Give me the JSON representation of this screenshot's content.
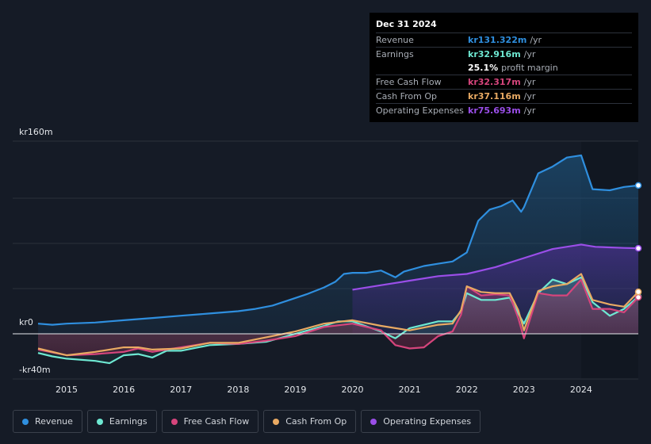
{
  "chart_data": {
    "type": "area",
    "currency_prefix": "kr",
    "y_axis": {
      "labels": [
        "kr160m",
        "kr0",
        "-kr40m"
      ],
      "ylim": [
        -40,
        160
      ]
    },
    "xlim": [
      2014.5,
      2025.0
    ],
    "x_ticks": [
      {
        "label": "2015",
        "value": 2015.0
      },
      {
        "label": "2016",
        "value": 2016.0
      },
      {
        "label": "2017",
        "value": 2017.0
      },
      {
        "label": "2018",
        "value": 2018.0
      },
      {
        "label": "2019",
        "value": 2019.0
      },
      {
        "label": "2020",
        "value": 2020.0
      },
      {
        "label": "2021",
        "value": 2021.0
      },
      {
        "label": "2022",
        "value": 2022.0
      },
      {
        "label": "2023",
        "value": 2023.0
      },
      {
        "label": "2024",
        "value": 2024.0
      }
    ],
    "shaded_from": 2024.0,
    "series": [
      {
        "name": "Revenue",
        "key": "revenue",
        "color": "#2f8fdf",
        "fill": true,
        "points": [
          [
            2014.5,
            9
          ],
          [
            2014.75,
            8
          ],
          [
            2015.0,
            9
          ],
          [
            2015.5,
            10
          ],
          [
            2015.75,
            11
          ],
          [
            2016.0,
            12
          ],
          [
            2016.5,
            14
          ],
          [
            2017.0,
            16
          ],
          [
            2017.5,
            18
          ],
          [
            2018.0,
            20
          ],
          [
            2018.3,
            22
          ],
          [
            2018.6,
            25
          ],
          [
            2018.9,
            30
          ],
          [
            2019.2,
            35
          ],
          [
            2019.5,
            41
          ],
          [
            2019.7,
            46
          ],
          [
            2019.85,
            53
          ],
          [
            2020.0,
            54
          ],
          [
            2020.25,
            54
          ],
          [
            2020.5,
            56
          ],
          [
            2020.75,
            50
          ],
          [
            2020.9,
            55
          ],
          [
            2021.25,
            60
          ],
          [
            2021.5,
            62
          ],
          [
            2021.75,
            64
          ],
          [
            2022.0,
            72
          ],
          [
            2022.2,
            100
          ],
          [
            2022.4,
            110
          ],
          [
            2022.6,
            113
          ],
          [
            2022.8,
            118
          ],
          [
            2022.95,
            108
          ],
          [
            2023.0,
            112
          ],
          [
            2023.25,
            142
          ],
          [
            2023.5,
            148
          ],
          [
            2023.75,
            156
          ],
          [
            2024.0,
            158
          ],
          [
            2024.2,
            128
          ],
          [
            2024.5,
            127
          ],
          [
            2024.75,
            130
          ],
          [
            2025.0,
            131.322
          ]
        ]
      },
      {
        "name": "Operating Expenses",
        "key": "opex",
        "color": "#9a4ee8",
        "fill": true,
        "points": [
          [
            2020.0,
            39
          ],
          [
            2020.5,
            43
          ],
          [
            2021.0,
            47
          ],
          [
            2021.5,
            51
          ],
          [
            2022.0,
            53
          ],
          [
            2022.5,
            59
          ],
          [
            2023.0,
            67
          ],
          [
            2023.5,
            75
          ],
          [
            2024.0,
            79
          ],
          [
            2024.25,
            77
          ],
          [
            2024.75,
            76
          ],
          [
            2025.0,
            75.693
          ]
        ]
      },
      {
        "name": "Earnings",
        "key": "earnings",
        "color": "#6ee8d2",
        "fill": true,
        "points": [
          [
            2014.5,
            -17
          ],
          [
            2014.75,
            -20
          ],
          [
            2015.0,
            -22
          ],
          [
            2015.5,
            -24
          ],
          [
            2015.75,
            -26
          ],
          [
            2016.0,
            -19
          ],
          [
            2016.25,
            -18
          ],
          [
            2016.5,
            -21
          ],
          [
            2016.75,
            -15
          ],
          [
            2017.0,
            -15
          ],
          [
            2017.5,
            -10
          ],
          [
            2018.0,
            -9
          ],
          [
            2018.5,
            -7
          ],
          [
            2019.0,
            0
          ],
          [
            2019.5,
            7
          ],
          [
            2019.75,
            11
          ],
          [
            2020.0,
            11
          ],
          [
            2020.5,
            2
          ],
          [
            2020.75,
            -4
          ],
          [
            2021.0,
            5
          ],
          [
            2021.5,
            11
          ],
          [
            2021.75,
            11
          ],
          [
            2021.9,
            20
          ],
          [
            2022.0,
            36
          ],
          [
            2022.25,
            30
          ],
          [
            2022.5,
            30
          ],
          [
            2022.75,
            32
          ],
          [
            2022.9,
            18
          ],
          [
            2023.0,
            9
          ],
          [
            2023.25,
            36
          ],
          [
            2023.5,
            48
          ],
          [
            2023.75,
            44
          ],
          [
            2024.0,
            50
          ],
          [
            2024.2,
            28
          ],
          [
            2024.5,
            16
          ],
          [
            2024.75,
            22
          ],
          [
            2025.0,
            32.916
          ]
        ]
      },
      {
        "name": "Free Cash Flow",
        "key": "fcf",
        "color": "#d6457c",
        "fill": true,
        "points": [
          [
            2014.5,
            -14
          ],
          [
            2015.0,
            -19
          ],
          [
            2015.5,
            -18
          ],
          [
            2016.0,
            -16
          ],
          [
            2016.25,
            -13
          ],
          [
            2016.5,
            -16
          ],
          [
            2017.0,
            -12
          ],
          [
            2017.5,
            -8
          ],
          [
            2018.0,
            -9
          ],
          [
            2018.5,
            -6
          ],
          [
            2019.0,
            -2
          ],
          [
            2019.5,
            6
          ],
          [
            2020.0,
            9
          ],
          [
            2020.5,
            3
          ],
          [
            2020.75,
            -10
          ],
          [
            2021.0,
            -13
          ],
          [
            2021.25,
            -12
          ],
          [
            2021.5,
            -2
          ],
          [
            2021.75,
            2
          ],
          [
            2021.9,
            17
          ],
          [
            2022.0,
            42
          ],
          [
            2022.25,
            34
          ],
          [
            2022.5,
            35
          ],
          [
            2022.75,
            34
          ],
          [
            2022.9,
            14
          ],
          [
            2023.0,
            -4
          ],
          [
            2023.25,
            36
          ],
          [
            2023.5,
            34
          ],
          [
            2023.75,
            34
          ],
          [
            2024.0,
            48
          ],
          [
            2024.2,
            22
          ],
          [
            2024.5,
            22
          ],
          [
            2024.75,
            19
          ],
          [
            2025.0,
            32.317
          ]
        ]
      },
      {
        "name": "Cash From Op",
        "key": "cfo",
        "color": "#e9aa63",
        "fill": false,
        "points": [
          [
            2014.5,
            -13
          ],
          [
            2015.0,
            -19
          ],
          [
            2015.5,
            -16
          ],
          [
            2016.0,
            -12
          ],
          [
            2016.25,
            -12
          ],
          [
            2016.5,
            -14
          ],
          [
            2017.0,
            -13
          ],
          [
            2017.5,
            -8
          ],
          [
            2018.0,
            -8
          ],
          [
            2018.5,
            -3
          ],
          [
            2019.0,
            2
          ],
          [
            2019.5,
            9
          ],
          [
            2020.0,
            12
          ],
          [
            2020.5,
            7
          ],
          [
            2021.0,
            3
          ],
          [
            2021.5,
            8
          ],
          [
            2021.75,
            9
          ],
          [
            2021.9,
            21
          ],
          [
            2022.0,
            42
          ],
          [
            2022.25,
            37
          ],
          [
            2022.5,
            36
          ],
          [
            2022.75,
            36
          ],
          [
            2022.9,
            21
          ],
          [
            2023.0,
            3
          ],
          [
            2023.25,
            38
          ],
          [
            2023.5,
            42
          ],
          [
            2023.75,
            44
          ],
          [
            2024.0,
            53
          ],
          [
            2024.2,
            30
          ],
          [
            2024.5,
            26
          ],
          [
            2024.75,
            24
          ],
          [
            2025.0,
            37.116
          ]
        ]
      }
    ]
  },
  "tooltip": {
    "date": "Dec 31 2024",
    "rows": [
      {
        "label": "Revenue",
        "value": "kr131.322m",
        "unit": "/yr",
        "color": "#2f8fdf"
      },
      {
        "label": "Earnings",
        "value": "kr32.916m",
        "unit": "/yr",
        "color": "#6ee8d2"
      },
      {
        "label": "",
        "value": "25.1%",
        "unit": "profit margin",
        "color": "#ffffff",
        "plain": true
      },
      {
        "label": "Free Cash Flow",
        "value": "kr32.317m",
        "unit": "/yr",
        "color": "#d6457c"
      },
      {
        "label": "Cash From Op",
        "value": "kr37.116m",
        "unit": "/yr",
        "color": "#e9aa63"
      },
      {
        "label": "Operating Expenses",
        "value": "kr75.693m",
        "unit": "/yr",
        "color": "#9a4ee8"
      }
    ]
  },
  "legend": [
    {
      "label": "Revenue",
      "color": "#2f8fdf"
    },
    {
      "label": "Earnings",
      "color": "#6ee8d2"
    },
    {
      "label": "Free Cash Flow",
      "color": "#d6457c"
    },
    {
      "label": "Cash From Op",
      "color": "#e9aa63"
    },
    {
      "label": "Operating Expenses",
      "color": "#9a4ee8"
    }
  ]
}
